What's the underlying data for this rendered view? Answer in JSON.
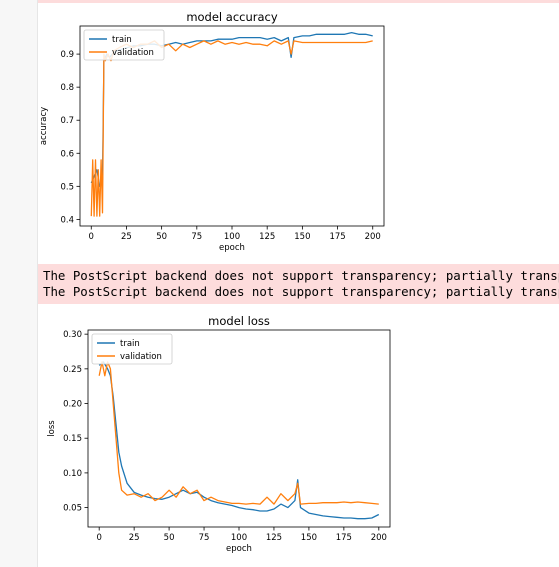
{
  "warnings": [
    "The PostScript backend does not support transparency; partially transparent artists will be rendered opaque.",
    "The PostScript backend does not support transparency; partially transparent artists will be rendered opaque."
  ],
  "colors": {
    "train": "#1f77b4",
    "validation": "#ff7f0e",
    "warning_bg": "#fddcdc"
  },
  "chart_data": [
    {
      "type": "line",
      "title": "model accuracy",
      "xlabel": "epoch",
      "ylabel": "accuracy",
      "xlim": [
        -8,
        208
      ],
      "ylim": [
        0.38,
        0.985
      ],
      "xticks": [
        0,
        25,
        50,
        75,
        100,
        125,
        150,
        175,
        200
      ],
      "yticks": [
        0.4,
        0.5,
        0.6,
        0.7,
        0.8,
        0.9
      ],
      "legend": "upper-left",
      "grid": false,
      "series": [
        {
          "name": "train",
          "color": "#1f77b4",
          "points": [
            [
              0,
              0.51
            ],
            [
              2,
              0.53
            ],
            [
              4,
              0.55
            ],
            [
              6,
              0.5
            ],
            [
              8,
              0.52
            ],
            [
              9,
              0.88
            ],
            [
              11,
              0.9
            ],
            [
              13,
              0.89
            ],
            [
              15,
              0.9
            ],
            [
              18,
              0.91
            ],
            [
              22,
              0.915
            ],
            [
              26,
              0.92
            ],
            [
              30,
              0.925
            ],
            [
              35,
              0.925
            ],
            [
              40,
              0.93
            ],
            [
              45,
              0.93
            ],
            [
              50,
              0.925
            ],
            [
              55,
              0.93
            ],
            [
              60,
              0.935
            ],
            [
              65,
              0.93
            ],
            [
              70,
              0.935
            ],
            [
              75,
              0.94
            ],
            [
              80,
              0.94
            ],
            [
              85,
              0.94
            ],
            [
              90,
              0.945
            ],
            [
              95,
              0.945
            ],
            [
              100,
              0.945
            ],
            [
              105,
              0.95
            ],
            [
              110,
              0.95
            ],
            [
              115,
              0.95
            ],
            [
              120,
              0.95
            ],
            [
              125,
              0.945
            ],
            [
              130,
              0.95
            ],
            [
              135,
              0.94
            ],
            [
              140,
              0.95
            ],
            [
              142,
              0.89
            ],
            [
              144,
              0.95
            ],
            [
              150,
              0.955
            ],
            [
              155,
              0.955
            ],
            [
              160,
              0.96
            ],
            [
              165,
              0.96
            ],
            [
              170,
              0.96
            ],
            [
              175,
              0.96
            ],
            [
              180,
              0.96
            ],
            [
              185,
              0.965
            ],
            [
              190,
              0.96
            ],
            [
              195,
              0.96
            ],
            [
              200,
              0.955
            ]
          ]
        },
        {
          "name": "validation",
          "color": "#ff7f0e",
          "points": [
            [
              0,
              0.41
            ],
            [
              1,
              0.58
            ],
            [
              2,
              0.41
            ],
            [
              3,
              0.58
            ],
            [
              4,
              0.41
            ],
            [
              5,
              0.55
            ],
            [
              6,
              0.41
            ],
            [
              7,
              0.58
            ],
            [
              8,
              0.42
            ],
            [
              9,
              0.9
            ],
            [
              10,
              0.88
            ],
            [
              12,
              0.9
            ],
            [
              14,
              0.88
            ],
            [
              16,
              0.91
            ],
            [
              20,
              0.92
            ],
            [
              25,
              0.93
            ],
            [
              30,
              0.92
            ],
            [
              35,
              0.93
            ],
            [
              40,
              0.93
            ],
            [
              45,
              0.94
            ],
            [
              50,
              0.92
            ],
            [
              55,
              0.93
            ],
            [
              60,
              0.91
            ],
            [
              65,
              0.93
            ],
            [
              70,
              0.92
            ],
            [
              75,
              0.93
            ],
            [
              80,
              0.94
            ],
            [
              85,
              0.93
            ],
            [
              90,
              0.94
            ],
            [
              95,
              0.93
            ],
            [
              100,
              0.935
            ],
            [
              105,
              0.93
            ],
            [
              110,
              0.935
            ],
            [
              115,
              0.93
            ],
            [
              120,
              0.93
            ],
            [
              125,
              0.925
            ],
            [
              130,
              0.94
            ],
            [
              135,
              0.93
            ],
            [
              140,
              0.94
            ],
            [
              142,
              0.9
            ],
            [
              144,
              0.94
            ],
            [
              150,
              0.935
            ],
            [
              155,
              0.935
            ],
            [
              160,
              0.935
            ],
            [
              165,
              0.935
            ],
            [
              170,
              0.935
            ],
            [
              175,
              0.935
            ],
            [
              180,
              0.935
            ],
            [
              185,
              0.935
            ],
            [
              190,
              0.935
            ],
            [
              195,
              0.935
            ],
            [
              200,
              0.94
            ]
          ]
        }
      ]
    },
    {
      "type": "line",
      "title": "model loss",
      "xlabel": "epoch",
      "ylabel": "loss",
      "xlim": [
        -8,
        208
      ],
      "ylim": [
        0.022,
        0.306
      ],
      "xticks": [
        0,
        25,
        50,
        75,
        100,
        125,
        150,
        175,
        200
      ],
      "yticks": [
        0.05,
        0.1,
        0.15,
        0.2,
        0.25,
        0.3
      ],
      "legend": "upper-left",
      "grid": false,
      "series": [
        {
          "name": "train",
          "color": "#1f77b4",
          "points": [
            [
              0,
              0.255
            ],
            [
              3,
              0.26
            ],
            [
              6,
              0.25
            ],
            [
              8,
              0.24
            ],
            [
              10,
              0.21
            ],
            [
              12,
              0.17
            ],
            [
              14,
              0.13
            ],
            [
              16,
              0.11
            ],
            [
              20,
              0.085
            ],
            [
              25,
              0.072
            ],
            [
              30,
              0.068
            ],
            [
              35,
              0.065
            ],
            [
              40,
              0.063
            ],
            [
              45,
              0.062
            ],
            [
              50,
              0.065
            ],
            [
              55,
              0.07
            ],
            [
              60,
              0.075
            ],
            [
              65,
              0.07
            ],
            [
              70,
              0.072
            ],
            [
              75,
              0.065
            ],
            [
              80,
              0.06
            ],
            [
              85,
              0.057
            ],
            [
              90,
              0.055
            ],
            [
              95,
              0.053
            ],
            [
              100,
              0.05
            ],
            [
              105,
              0.048
            ],
            [
              110,
              0.047
            ],
            [
              115,
              0.045
            ],
            [
              120,
              0.045
            ],
            [
              125,
              0.048
            ],
            [
              130,
              0.055
            ],
            [
              135,
              0.05
            ],
            [
              140,
              0.06
            ],
            [
              142,
              0.09
            ],
            [
              144,
              0.05
            ],
            [
              150,
              0.042
            ],
            [
              155,
              0.04
            ],
            [
              160,
              0.038
            ],
            [
              165,
              0.037
            ],
            [
              170,
              0.036
            ],
            [
              175,
              0.035
            ],
            [
              180,
              0.035
            ],
            [
              185,
              0.034
            ],
            [
              190,
              0.034
            ],
            [
              195,
              0.035
            ],
            [
              200,
              0.04
            ]
          ]
        },
        {
          "name": "validation",
          "color": "#ff7f0e",
          "points": [
            [
              0,
              0.24
            ],
            [
              2,
              0.26
            ],
            [
              4,
              0.24
            ],
            [
              6,
              0.26
            ],
            [
              8,
              0.25
            ],
            [
              10,
              0.2
            ],
            [
              12,
              0.15
            ],
            [
              14,
              0.1
            ],
            [
              16,
              0.075
            ],
            [
              20,
              0.068
            ],
            [
              25,
              0.07
            ],
            [
              30,
              0.065
            ],
            [
              35,
              0.07
            ],
            [
              40,
              0.06
            ],
            [
              45,
              0.065
            ],
            [
              50,
              0.075
            ],
            [
              55,
              0.065
            ],
            [
              60,
              0.08
            ],
            [
              65,
              0.07
            ],
            [
              70,
              0.075
            ],
            [
              75,
              0.06
            ],
            [
              80,
              0.065
            ],
            [
              85,
              0.06
            ],
            [
              90,
              0.058
            ],
            [
              95,
              0.056
            ],
            [
              100,
              0.056
            ],
            [
              105,
              0.055
            ],
            [
              110,
              0.056
            ],
            [
              115,
              0.055
            ],
            [
              120,
              0.065
            ],
            [
              125,
              0.055
            ],
            [
              130,
              0.07
            ],
            [
              135,
              0.06
            ],
            [
              140,
              0.07
            ],
            [
              142,
              0.085
            ],
            [
              144,
              0.055
            ],
            [
              150,
              0.056
            ],
            [
              155,
              0.056
            ],
            [
              160,
              0.057
            ],
            [
              165,
              0.057
            ],
            [
              170,
              0.057
            ],
            [
              175,
              0.058
            ],
            [
              180,
              0.057
            ],
            [
              185,
              0.058
            ],
            [
              190,
              0.057
            ],
            [
              195,
              0.056
            ],
            [
              200,
              0.055
            ]
          ]
        }
      ]
    }
  ]
}
